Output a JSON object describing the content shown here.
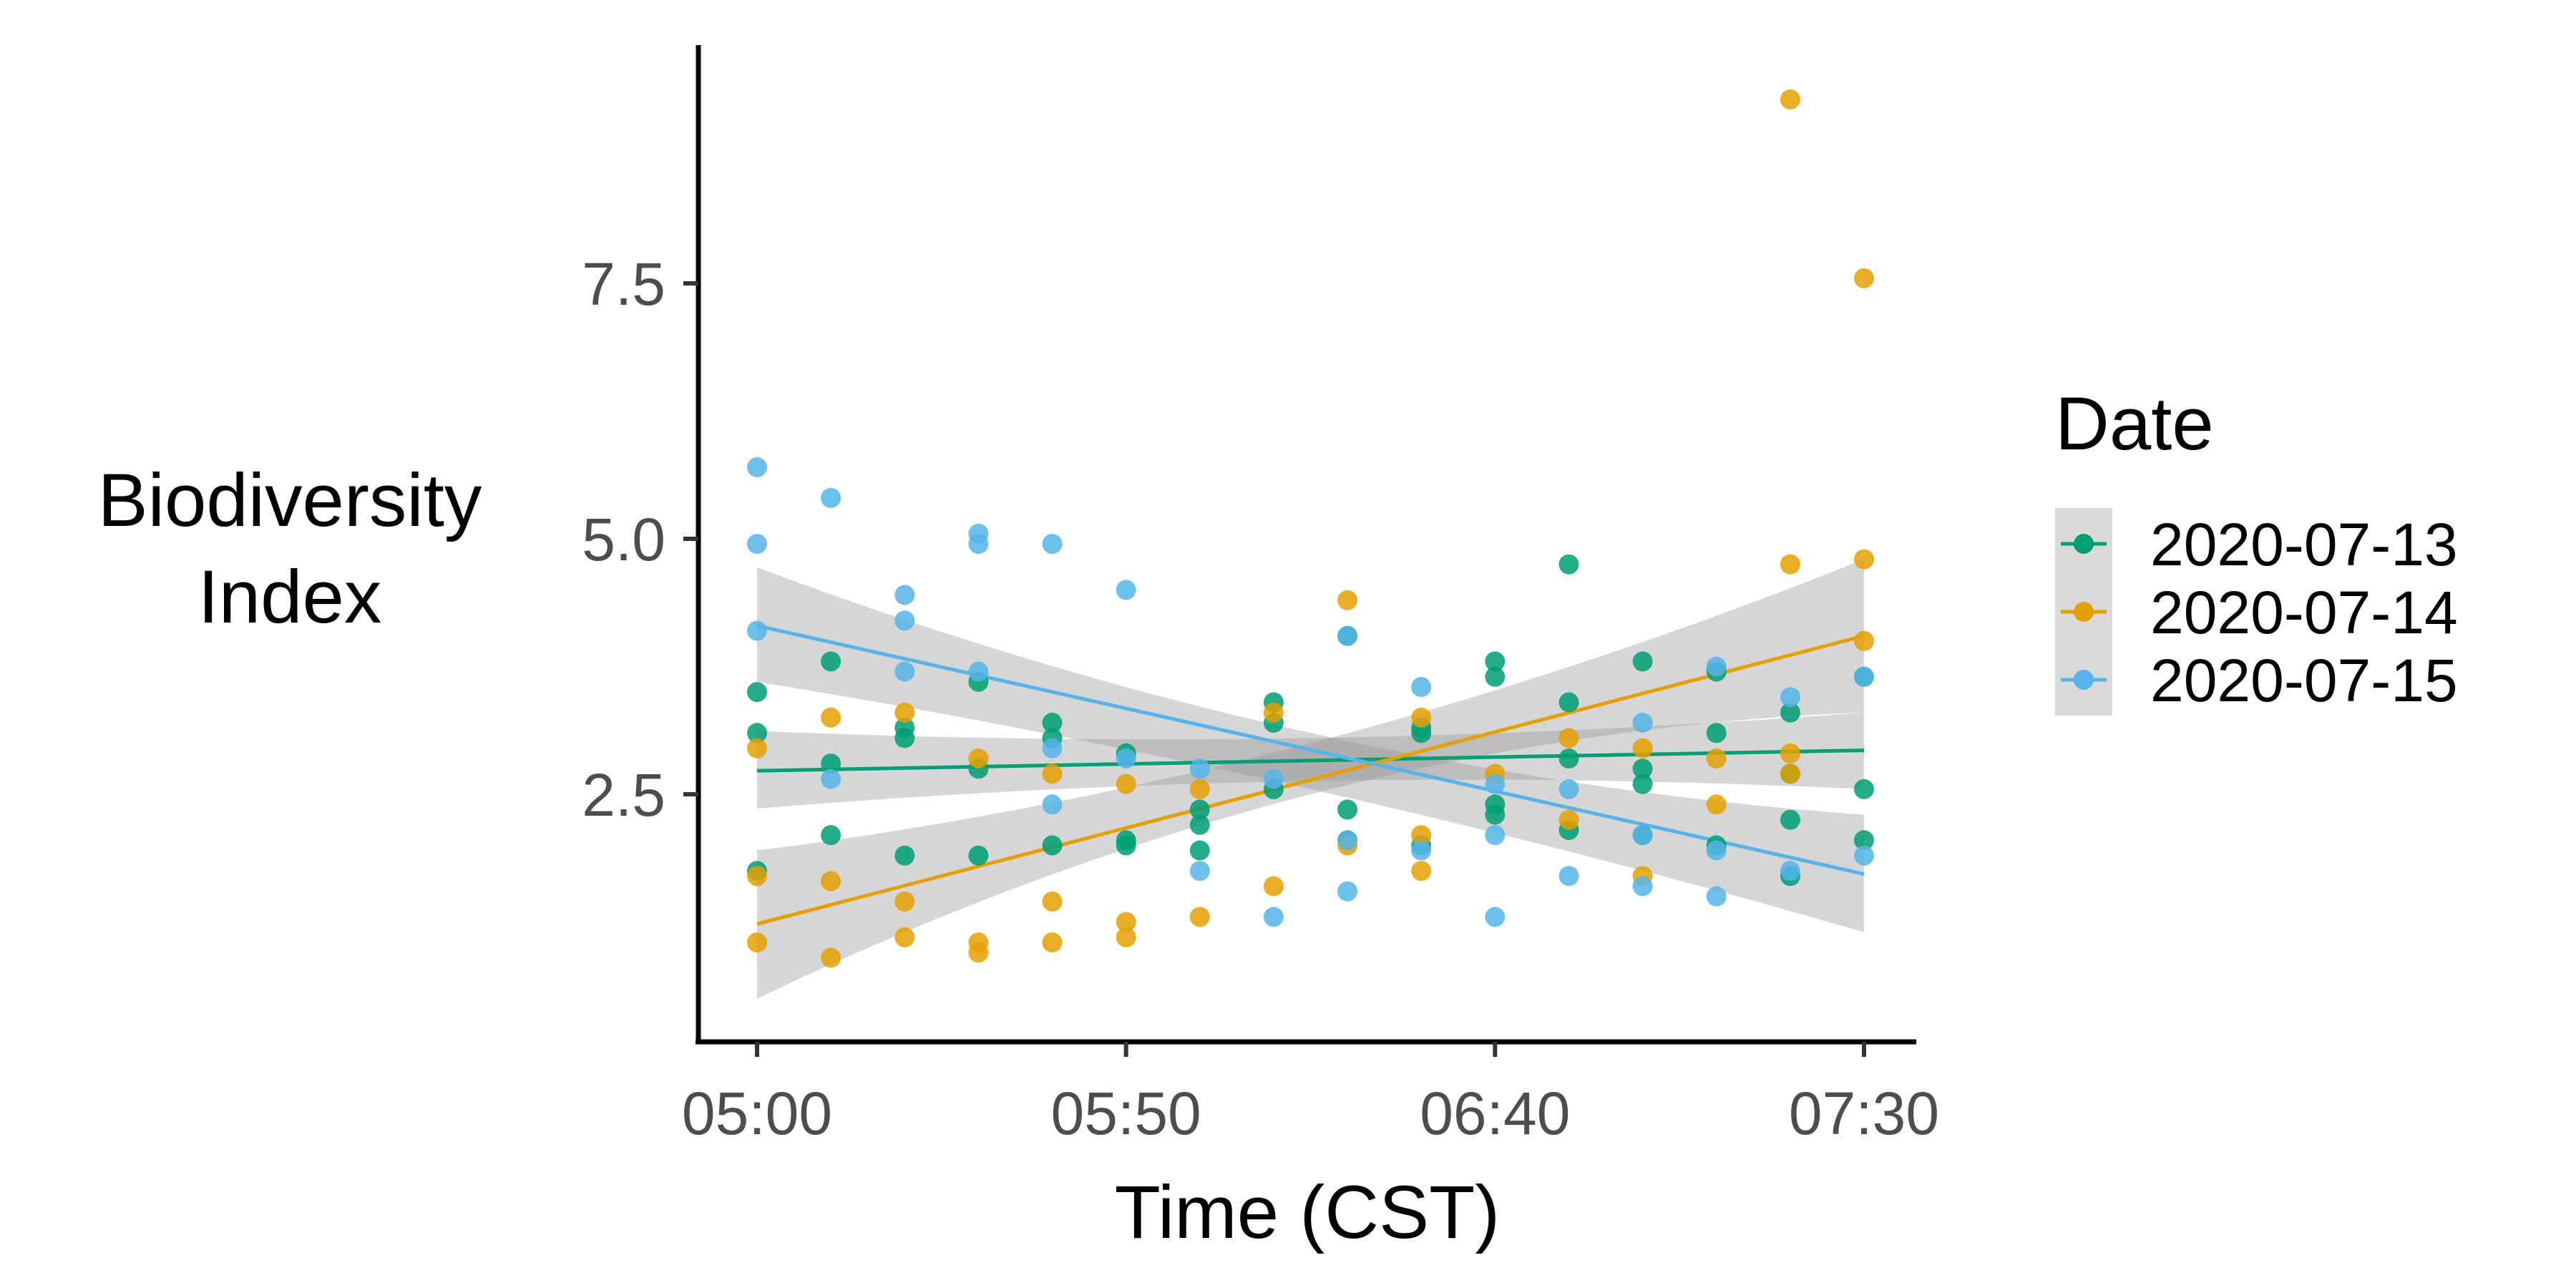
{
  "chart_data": {
    "type": "scatter",
    "xlabel": "Time (CST)",
    "ylabel": [
      "Biodiversity",
      "Index"
    ],
    "x_ticks": [
      "05:00",
      "05:50",
      "06:40",
      "07:30"
    ],
    "y_ticks": [
      "2.5",
      "5.0",
      "7.5"
    ],
    "xlim": [
      "04:57",
      "07:39"
    ],
    "ylim": [
      0.2,
      9.75
    ],
    "grid": false,
    "legend": {
      "title": "Date",
      "position": "right"
    },
    "series": [
      {
        "name": "2020-07-13",
        "color": "#009E73",
        "points": [
          [
            "05:00",
            3.5
          ],
          [
            "05:00",
            3.1
          ],
          [
            "05:00",
            1.75
          ],
          [
            "05:10",
            3.8
          ],
          [
            "05:10",
            2.8
          ],
          [
            "05:10",
            2.1
          ],
          [
            "05:20",
            3.15
          ],
          [
            "05:20",
            3.05
          ],
          [
            "05:20",
            1.9
          ],
          [
            "05:30",
            3.6
          ],
          [
            "05:30",
            2.75
          ],
          [
            "05:30",
            1.9
          ],
          [
            "05:40",
            3.2
          ],
          [
            "05:40",
            3.05
          ],
          [
            "05:40",
            2.0
          ],
          [
            "05:50",
            2.9
          ],
          [
            "05:50",
            2.05
          ],
          [
            "05:50",
            2.0
          ],
          [
            "06:00",
            2.35
          ],
          [
            "06:00",
            2.2
          ],
          [
            "06:00",
            1.95
          ],
          [
            "06:10",
            3.4
          ],
          [
            "06:10",
            3.2
          ],
          [
            "06:10",
            2.55
          ],
          [
            "06:20",
            4.05
          ],
          [
            "06:20",
            2.35
          ],
          [
            "06:20",
            2.05
          ],
          [
            "06:30",
            3.1
          ],
          [
            "06:30",
            3.15
          ],
          [
            "06:30",
            2.0
          ],
          [
            "06:40",
            3.8
          ],
          [
            "06:40",
            3.65
          ],
          [
            "06:40",
            2.4
          ],
          [
            "06:40",
            2.3
          ],
          [
            "06:50",
            4.75
          ],
          [
            "06:50",
            3.4
          ],
          [
            "06:50",
            2.85
          ],
          [
            "06:50",
            2.15
          ],
          [
            "07:00",
            3.8
          ],
          [
            "07:00",
            2.75
          ],
          [
            "07:00",
            2.6
          ],
          [
            "07:00",
            2.1
          ],
          [
            "07:10",
            3.7
          ],
          [
            "07:10",
            3.1
          ],
          [
            "07:10",
            2.0
          ],
          [
            "07:20",
            3.3
          ],
          [
            "07:20",
            2.7
          ],
          [
            "07:20",
            2.25
          ],
          [
            "07:20",
            1.7
          ],
          [
            "07:30",
            3.65
          ],
          [
            "07:30",
            2.55
          ],
          [
            "07:30",
            2.05
          ]
        ],
        "fit": {
          "start": [
            "05:00",
            2.73
          ],
          "end": [
            "07:30",
            2.93
          ]
        },
        "ci": {
          "start": [
            2.36,
            3.12
          ],
          "mid": [
            2.63,
            3.05
          ],
          "end": [
            2.55,
            3.3
          ]
        }
      },
      {
        "name": "2020-07-14",
        "color": "#E69F00",
        "points": [
          [
            "05:00",
            2.95
          ],
          [
            "05:00",
            1.7
          ],
          [
            "05:00",
            1.05
          ],
          [
            "05:10",
            3.25
          ],
          [
            "05:10",
            1.65
          ],
          [
            "05:10",
            0.9
          ],
          [
            "05:20",
            3.3
          ],
          [
            "05:20",
            1.45
          ],
          [
            "05:20",
            1.1
          ],
          [
            "05:30",
            2.85
          ],
          [
            "05:30",
            1.05
          ],
          [
            "05:30",
            0.95
          ],
          [
            "05:40",
            2.7
          ],
          [
            "05:40",
            1.45
          ],
          [
            "05:40",
            1.05
          ],
          [
            "05:50",
            2.6
          ],
          [
            "05:50",
            1.25
          ],
          [
            "05:50",
            1.1
          ],
          [
            "06:00",
            2.55
          ],
          [
            "06:00",
            1.3
          ],
          [
            "06:10",
            3.3
          ],
          [
            "06:10",
            1.6
          ],
          [
            "06:20",
            4.4
          ],
          [
            "06:20",
            2.0
          ],
          [
            "06:30",
            3.25
          ],
          [
            "06:30",
            2.1
          ],
          [
            "06:30",
            1.75
          ],
          [
            "06:40",
            2.7
          ],
          [
            "06:50",
            3.05
          ],
          [
            "06:50",
            2.25
          ],
          [
            "07:00",
            2.95
          ],
          [
            "07:00",
            1.7
          ],
          [
            "07:10",
            2.85
          ],
          [
            "07:10",
            2.4
          ],
          [
            "07:20",
            9.3
          ],
          [
            "07:20",
            4.75
          ],
          [
            "07:20",
            2.9
          ],
          [
            "07:20",
            2.7
          ],
          [
            "07:30",
            7.55
          ],
          [
            "07:30",
            4.8
          ],
          [
            "07:30",
            4.0
          ]
        ],
        "fit": {
          "start": [
            "05:00",
            1.23
          ],
          "end": [
            "07:30",
            4.05
          ]
        },
        "ci": {
          "start": [
            0.5,
            1.95
          ],
          "mid": [
            2.5,
            3.0
          ],
          "end": [
            3.3,
            4.8
          ]
        }
      },
      {
        "name": "2020-07-15",
        "color": "#56B4E9",
        "points": [
          [
            "05:00",
            5.7
          ],
          [
            "05:00",
            4.95
          ],
          [
            "05:00",
            4.1
          ],
          [
            "05:10",
            5.4
          ],
          [
            "05:10",
            2.65
          ],
          [
            "05:20",
            4.45
          ],
          [
            "05:20",
            4.2
          ],
          [
            "05:20",
            3.7
          ],
          [
            "05:30",
            5.05
          ],
          [
            "05:30",
            4.95
          ],
          [
            "05:30",
            3.7
          ],
          [
            "05:40",
            4.95
          ],
          [
            "05:40",
            2.4
          ],
          [
            "05:40",
            2.95
          ],
          [
            "05:50",
            4.5
          ],
          [
            "05:50",
            2.85
          ],
          [
            "06:00",
            2.75
          ],
          [
            "06:00",
            1.75
          ],
          [
            "06:10",
            1.3
          ],
          [
            "06:10",
            2.65
          ],
          [
            "06:20",
            4.05
          ],
          [
            "06:20",
            1.55
          ],
          [
            "06:20",
            2.05
          ],
          [
            "06:30",
            3.55
          ],
          [
            "06:30",
            1.95
          ],
          [
            "06:40",
            2.1
          ],
          [
            "06:40",
            1.3
          ],
          [
            "06:40",
            2.6
          ],
          [
            "06:50",
            2.55
          ],
          [
            "06:50",
            1.7
          ],
          [
            "07:00",
            3.2
          ],
          [
            "07:00",
            2.1
          ],
          [
            "07:00",
            1.6
          ],
          [
            "07:10",
            3.75
          ],
          [
            "07:10",
            1.5
          ],
          [
            "07:10",
            1.95
          ],
          [
            "07:20",
            3.45
          ],
          [
            "07:20",
            1.75
          ],
          [
            "07:30",
            3.65
          ],
          [
            "07:30",
            1.9
          ]
        ],
        "fit": {
          "start": [
            "05:00",
            4.15
          ],
          "end": [
            "07:30",
            1.72
          ]
        },
        "ci": {
          "start": [
            3.6,
            4.72
          ],
          "mid": [
            2.55,
            3.1
          ],
          "end": [
            1.15,
            2.3
          ]
        }
      }
    ]
  }
}
